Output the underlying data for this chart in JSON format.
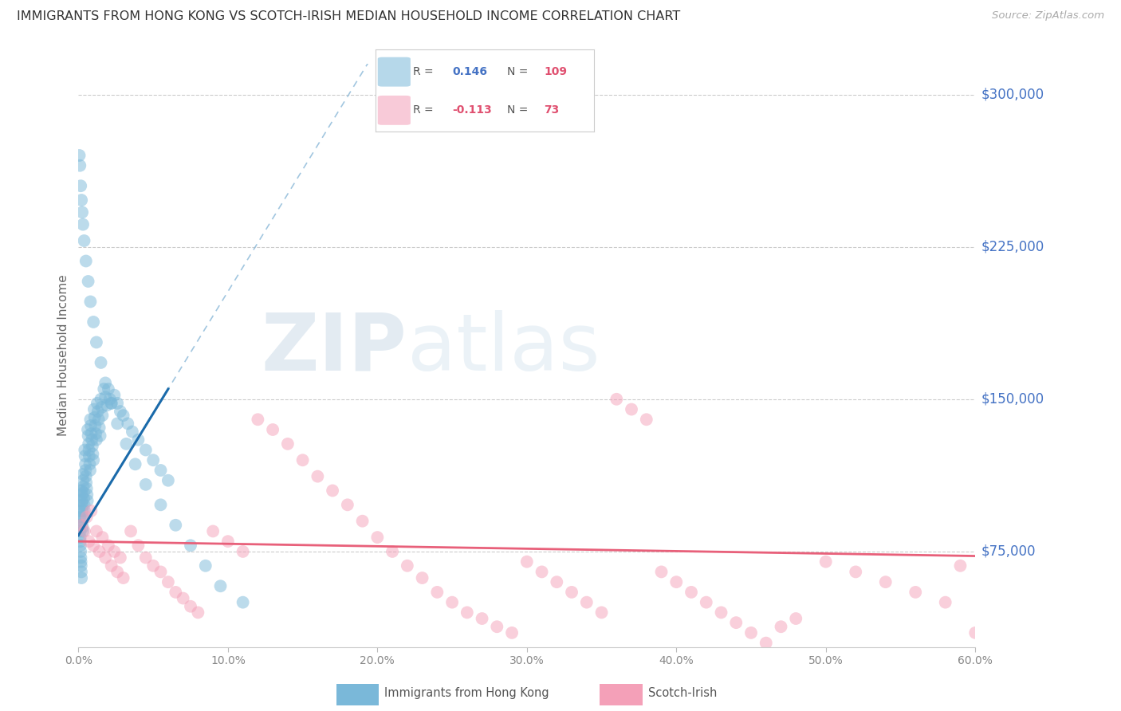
{
  "title": "IMMIGRANTS FROM HONG KONG VS SCOTCH-IRISH MEDIAN HOUSEHOLD INCOME CORRELATION CHART",
  "source": "Source: ZipAtlas.com",
  "ylabel": "Median Household Income",
  "yticks": [
    75000,
    150000,
    225000,
    300000
  ],
  "ytick_labels": [
    "$75,000",
    "$150,000",
    "$225,000",
    "$300,000"
  ],
  "xmin": 0.0,
  "xmax": 60.0,
  "ymin": 28000,
  "ymax": 315000,
  "blue_color": "#7ab8d9",
  "pink_color": "#f4a0b8",
  "blue_line_color": "#1a6aaa",
  "pink_line_color": "#e8607a",
  "blue_r": 0.146,
  "blue_n": 109,
  "pink_r": -0.113,
  "pink_n": 73,
  "hk_x": [
    0.05,
    0.07,
    0.08,
    0.09,
    0.1,
    0.11,
    0.12,
    0.13,
    0.14,
    0.15,
    0.16,
    0.17,
    0.18,
    0.19,
    0.2,
    0.2,
    0.22,
    0.23,
    0.24,
    0.25,
    0.26,
    0.27,
    0.28,
    0.3,
    0.3,
    0.32,
    0.33,
    0.35,
    0.36,
    0.38,
    0.4,
    0.42,
    0.44,
    0.46,
    0.48,
    0.5,
    0.52,
    0.55,
    0.58,
    0.6,
    0.62,
    0.65,
    0.68,
    0.7,
    0.72,
    0.75,
    0.78,
    0.8,
    0.83,
    0.86,
    0.9,
    0.93,
    0.96,
    1.0,
    1.04,
    1.08,
    1.12,
    1.16,
    1.2,
    1.25,
    1.3,
    1.35,
    1.4,
    1.45,
    1.5,
    1.55,
    1.6,
    1.7,
    1.8,
    1.9,
    2.0,
    2.1,
    2.2,
    2.4,
    2.6,
    2.8,
    3.0,
    3.3,
    3.6,
    4.0,
    4.5,
    5.0,
    5.5,
    6.0,
    0.06,
    0.1,
    0.15,
    0.2,
    0.25,
    0.3,
    0.38,
    0.5,
    0.65,
    0.8,
    1.0,
    1.2,
    1.5,
    1.8,
    2.2,
    2.6,
    3.2,
    3.8,
    4.5,
    5.5,
    6.5,
    7.5,
    8.5,
    9.5,
    11.0
  ],
  "hk_y": [
    105000,
    100000,
    95000,
    92000,
    88000,
    85000,
    82000,
    80000,
    78000,
    75000,
    72000,
    70000,
    68000,
    65000,
    62000,
    105000,
    103000,
    100000,
    98000,
    95000,
    92000,
    90000,
    87000,
    85000,
    113000,
    110000,
    107000,
    104000,
    101000,
    98000,
    95000,
    125000,
    122000,
    118000,
    115000,
    112000,
    109000,
    106000,
    103000,
    100000,
    135000,
    132000,
    128000,
    125000,
    122000,
    118000,
    115000,
    140000,
    137000,
    133000,
    130000,
    127000,
    123000,
    120000,
    145000,
    141000,
    137000,
    133000,
    130000,
    148000,
    144000,
    140000,
    136000,
    132000,
    150000,
    146000,
    142000,
    155000,
    151000,
    147000,
    155000,
    150000,
    148000,
    152000,
    148000,
    144000,
    142000,
    138000,
    134000,
    130000,
    125000,
    120000,
    115000,
    110000,
    270000,
    265000,
    255000,
    248000,
    242000,
    236000,
    228000,
    218000,
    208000,
    198000,
    188000,
    178000,
    168000,
    158000,
    148000,
    138000,
    128000,
    118000,
    108000,
    98000,
    88000,
    78000,
    68000,
    58000,
    50000
  ],
  "si_x": [
    0.2,
    0.4,
    0.55,
    0.7,
    0.85,
    1.0,
    1.2,
    1.4,
    1.6,
    1.8,
    2.0,
    2.2,
    2.4,
    2.6,
    2.8,
    3.0,
    3.5,
    4.0,
    4.5,
    5.0,
    5.5,
    6.0,
    6.5,
    7.0,
    7.5,
    8.0,
    9.0,
    10.0,
    11.0,
    12.0,
    13.0,
    14.0,
    15.0,
    16.0,
    17.0,
    18.0,
    19.0,
    20.0,
    21.0,
    22.0,
    23.0,
    24.0,
    25.0,
    26.0,
    27.0,
    28.0,
    29.0,
    30.0,
    31.0,
    32.0,
    33.0,
    34.0,
    35.0,
    36.0,
    37.0,
    38.0,
    39.0,
    40.0,
    41.0,
    42.0,
    43.0,
    44.0,
    45.0,
    46.0,
    47.0,
    48.0,
    50.0,
    52.0,
    54.0,
    56.0,
    58.0,
    59.0,
    60.0
  ],
  "si_y": [
    88000,
    85000,
    92000,
    80000,
    95000,
    78000,
    85000,
    75000,
    82000,
    72000,
    78000,
    68000,
    75000,
    65000,
    72000,
    62000,
    85000,
    78000,
    72000,
    68000,
    65000,
    60000,
    55000,
    52000,
    48000,
    45000,
    85000,
    80000,
    75000,
    140000,
    135000,
    128000,
    120000,
    112000,
    105000,
    98000,
    90000,
    82000,
    75000,
    68000,
    62000,
    55000,
    50000,
    45000,
    42000,
    38000,
    35000,
    70000,
    65000,
    60000,
    55000,
    50000,
    45000,
    150000,
    145000,
    140000,
    65000,
    60000,
    55000,
    50000,
    45000,
    40000,
    35000,
    30000,
    38000,
    42000,
    70000,
    65000,
    60000,
    55000,
    50000,
    68000,
    35000
  ]
}
